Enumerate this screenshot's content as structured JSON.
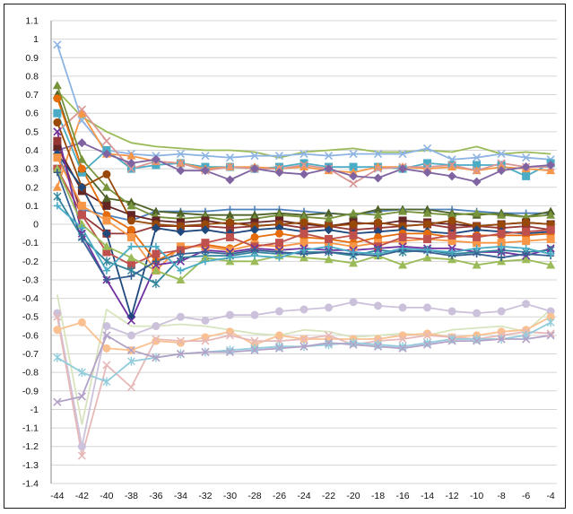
{
  "chart_data": {
    "type": "line",
    "title": "",
    "xlabel": "",
    "ylabel": "",
    "x": [
      -44,
      -42,
      -40,
      -38,
      -36,
      -34,
      -32,
      -30,
      -28,
      -26,
      -24,
      -22,
      -20,
      -18,
      -16,
      -14,
      -12,
      -10,
      -8,
      -6,
      -4
    ],
    "x_tick_labels": [
      "-44",
      "-42",
      "-40",
      "-38",
      "-36",
      "-34",
      "-32",
      "-30",
      "-28",
      "-26",
      "-24",
      "-22",
      "-20",
      "-18",
      "-16",
      "-14",
      "-12",
      "-10",
      "-8",
      "-6",
      "-4"
    ],
    "ylim": [
      -1.4,
      1.1
    ],
    "y_tick_labels": [
      "1.1",
      "1",
      "0.9",
      "0.8",
      "0.7",
      "0.6",
      "0.5",
      "0.4",
      "0.3",
      "0.2",
      "0.1",
      "0",
      "-0.1",
      "-0.2",
      "-0.3",
      "-0.4",
      "-0.5",
      "-0.6",
      "-0.7",
      "-0.8",
      "-0.9",
      "-1",
      "-1.1",
      "-1.2",
      "-1.3",
      "-1.4"
    ],
    "grid": true,
    "legend": "none",
    "series": [
      {
        "color": "#9bbb59",
        "marker": "none",
        "values": [
          0.72,
          0.58,
          0.5,
          0.44,
          0.42,
          0.41,
          0.4,
          0.4,
          0.39,
          0.36,
          0.39,
          0.4,
          0.41,
          0.39,
          0.39,
          0.4,
          0.39,
          0.42,
          0.38,
          0.39,
          0.38
        ]
      },
      {
        "color": "#8eb4e3",
        "marker": "x",
        "values": [
          0.97,
          0.56,
          0.4,
          0.38,
          0.37,
          0.38,
          0.37,
          0.36,
          0.37,
          0.37,
          0.38,
          0.37,
          0.38,
          0.38,
          0.38,
          0.41,
          0.35,
          0.36,
          0.38,
          0.36,
          0.35
        ]
      },
      {
        "color": "#4bacc6",
        "marker": "square",
        "values": [
          0.6,
          0.28,
          0.4,
          0.3,
          0.32,
          0.33,
          0.31,
          0.31,
          0.3,
          0.31,
          0.33,
          0.31,
          0.31,
          0.31,
          0.3,
          0.33,
          0.32,
          0.32,
          0.32,
          0.26,
          0.33
        ]
      },
      {
        "color": "#f79646",
        "marker": "triangle",
        "values": [
          0.2,
          0.6,
          0.38,
          0.37,
          0.34,
          0.33,
          0.3,
          0.31,
          0.31,
          0.3,
          0.31,
          0.29,
          0.28,
          0.31,
          0.31,
          0.3,
          0.31,
          0.29,
          0.31,
          0.3,
          0.29
        ]
      },
      {
        "color": "#d99694",
        "marker": "x",
        "values": [
          0.5,
          0.62,
          0.45,
          0.3,
          0.34,
          0.33,
          0.29,
          0.31,
          0.3,
          0.3,
          0.32,
          0.3,
          0.22,
          0.3,
          0.31,
          0.31,
          0.32,
          0.29,
          0.33,
          0.31,
          0.31
        ]
      },
      {
        "color": "#8064a2",
        "marker": "diamond",
        "values": [
          0.4,
          0.44,
          0.38,
          0.33,
          0.35,
          0.29,
          0.29,
          0.24,
          0.3,
          0.28,
          0.27,
          0.3,
          0.26,
          0.25,
          0.3,
          0.28,
          0.26,
          0.23,
          0.29,
          0.31,
          0.32
        ]
      },
      {
        "color": "#4f81bd",
        "marker": "plus",
        "values": [
          0.38,
          0.08,
          0.05,
          0.02,
          0.07,
          0.07,
          0.07,
          0.08,
          0.08,
          0.08,
          0.07,
          0.06,
          0.05,
          0.07,
          0.08,
          0.08,
          0.08,
          0.07,
          0.06,
          0.06,
          0.06
        ]
      },
      {
        "color": "#4f6228",
        "marker": "triangle",
        "values": [
          0.7,
          0.3,
          0.14,
          0.12,
          0.07,
          0.06,
          0.05,
          0.05,
          0.05,
          0.06,
          0.05,
          0.06,
          0.05,
          0.08,
          0.08,
          0.08,
          0.06,
          0.05,
          0.06,
          0.04,
          0.07
        ]
      },
      {
        "color": "#77933c",
        "marker": "triangle",
        "values": [
          0.75,
          0.35,
          0.2,
          0.1,
          0.04,
          0.03,
          0.04,
          0.02,
          0.03,
          0.05,
          0.04,
          0.03,
          0.06,
          0.05,
          0.07,
          0.06,
          0.05,
          0.06,
          0.05,
          0.04,
          0.05
        ]
      },
      {
        "color": "#632523",
        "marker": "square",
        "values": [
          0.42,
          0.18,
          0.1,
          0.05,
          0.02,
          0.01,
          0.02,
          0.0,
          0.01,
          0.02,
          0.0,
          -0.01,
          0.01,
          0.0,
          0.02,
          0.01,
          0.0,
          -0.01,
          0.0,
          0.01,
          0.0
        ]
      },
      {
        "color": "#953735",
        "marker": "square",
        "values": [
          0.45,
          0.05,
          -0.05,
          -0.05,
          -0.01,
          -0.01,
          -0.01,
          -0.02,
          -0.01,
          0.0,
          -0.02,
          -0.01,
          -0.03,
          -0.02,
          -0.01,
          0.0,
          -0.02,
          -0.01,
          -0.02,
          -0.01,
          -0.03
        ]
      },
      {
        "color": "#984807",
        "marker": "circle",
        "values": [
          0.55,
          0.2,
          0.27,
          0.02,
          0.0,
          -0.01,
          0.0,
          0.01,
          -0.01,
          0.0,
          0.01,
          -0.01,
          0.0,
          0.01,
          -0.01,
          0.0,
          0.02,
          -0.01,
          0.0,
          0.01,
          0.0
        ]
      },
      {
        "color": "#1f497d",
        "marker": "diamond",
        "values": [
          0.38,
          0.2,
          -0.05,
          -0.5,
          -0.02,
          -0.04,
          -0.03,
          -0.05,
          -0.03,
          -0.02,
          -0.04,
          -0.03,
          -0.05,
          -0.04,
          -0.03,
          -0.04,
          -0.05,
          -0.03,
          -0.04,
          -0.05,
          -0.04
        ]
      },
      {
        "color": "#e46c0a",
        "marker": "circle",
        "values": [
          0.68,
          0.3,
          0.05,
          -0.03,
          -0.2,
          -0.13,
          -0.11,
          -0.13,
          -0.07,
          -0.05,
          -0.07,
          -0.08,
          -0.1,
          -0.07,
          -0.05,
          -0.05,
          -0.07,
          -0.06,
          -0.06,
          -0.06,
          -0.05
        ]
      },
      {
        "color": "#f79646",
        "marker": "square",
        "values": [
          0.36,
          0.1,
          0.02,
          -0.07,
          -0.25,
          -0.12,
          -0.12,
          -0.14,
          -0.11,
          -0.12,
          -0.1,
          -0.1,
          -0.12,
          -0.1,
          -0.09,
          -0.08,
          -0.09,
          -0.1,
          -0.1,
          -0.09,
          -0.08
        ]
      },
      {
        "color": "#c0504d",
        "marker": "square",
        "values": [
          0.3,
          0.05,
          -0.15,
          -0.22,
          -0.16,
          -0.14,
          -0.1,
          -0.07,
          -0.12,
          -0.1,
          -0.05,
          -0.08,
          -0.06,
          -0.12,
          -0.07,
          -0.08,
          -0.06,
          -0.07,
          -0.05,
          -0.04,
          -0.03
        ]
      },
      {
        "color": "#7030a0",
        "marker": "x",
        "values": [
          0.5,
          -0.05,
          -0.3,
          -0.52,
          -0.22,
          -0.2,
          -0.14,
          -0.15,
          -0.13,
          -0.14,
          -0.13,
          -0.14,
          -0.14,
          -0.13,
          -0.12,
          -0.13,
          -0.13,
          -0.15,
          -0.15,
          -0.17,
          -0.13
        ]
      },
      {
        "color": "#31859c",
        "marker": "star",
        "values": [
          0.15,
          -0.07,
          -0.2,
          -0.25,
          -0.32,
          -0.18,
          -0.17,
          -0.17,
          -0.15,
          -0.16,
          -0.15,
          -0.15,
          -0.17,
          -0.14,
          -0.15,
          -0.14,
          -0.16,
          -0.15,
          -0.14,
          -0.15,
          -0.14
        ]
      },
      {
        "color": "#9bbb59",
        "marker": "triangle",
        "values": [
          0.3,
          0.0,
          -0.12,
          -0.18,
          -0.25,
          -0.3,
          -0.18,
          -0.2,
          -0.2,
          -0.17,
          -0.18,
          -0.19,
          -0.21,
          -0.17,
          -0.22,
          -0.18,
          -0.19,
          -0.22,
          -0.2,
          -0.19,
          -0.22
        ]
      },
      {
        "color": "#376092",
        "marker": "plus",
        "values": [
          0.28,
          -0.08,
          -0.3,
          -0.28,
          -0.2,
          -0.16,
          -0.15,
          -0.16,
          -0.14,
          -0.15,
          -0.16,
          -0.15,
          -0.16,
          -0.17,
          -0.14,
          -0.15,
          -0.17,
          -0.16,
          -0.18,
          -0.16,
          -0.17
        ]
      },
      {
        "color": "#4bacc6",
        "marker": "plus",
        "values": [
          0.1,
          -0.02,
          -0.25,
          -0.12,
          -0.12,
          -0.25,
          -0.2,
          -0.18,
          -0.17,
          -0.18,
          -0.14,
          -0.12,
          -0.15,
          -0.16,
          -0.13,
          -0.14,
          -0.15,
          -0.13,
          -0.12,
          -0.13,
          -0.16
        ]
      },
      {
        "color": "#ccc1da",
        "marker": "circle",
        "values": [
          -0.48,
          -1.2,
          -0.55,
          -0.6,
          -0.55,
          -0.5,
          -0.52,
          -0.49,
          -0.49,
          -0.47,
          -0.46,
          -0.45,
          -0.42,
          -0.44,
          -0.45,
          -0.45,
          -0.47,
          -0.48,
          -0.47,
          -0.43,
          -0.47
        ]
      },
      {
        "color": "#d7e4bd",
        "marker": "none",
        "values": [
          -0.38,
          -1.08,
          -0.46,
          -0.55,
          -0.55,
          -0.54,
          -0.55,
          -0.57,
          -0.59,
          -0.6,
          -0.57,
          -0.58,
          -0.61,
          -0.6,
          -0.59,
          -0.6,
          -0.57,
          -0.56,
          -0.55,
          -0.58,
          -0.46
        ]
      },
      {
        "color": "#fac090",
        "marker": "circle",
        "values": [
          -0.57,
          -0.53,
          -0.67,
          -0.68,
          -0.63,
          -0.64,
          -0.61,
          -0.58,
          -0.65,
          -0.6,
          -0.62,
          -0.62,
          -0.62,
          -0.62,
          -0.6,
          -0.59,
          -0.61,
          -0.6,
          -0.58,
          -0.57,
          -0.5
        ]
      },
      {
        "color": "#e6b9b8",
        "marker": "x",
        "values": [
          -0.5,
          -1.25,
          -0.76,
          -0.88,
          -0.62,
          -0.63,
          -0.63,
          -0.6,
          -0.63,
          -0.63,
          -0.62,
          -0.6,
          -0.65,
          -0.63,
          -0.62,
          -0.6,
          -0.61,
          -0.62,
          -0.6,
          -0.58,
          -0.59
        ]
      },
      {
        "color": "#93cddd",
        "marker": "star",
        "values": [
          -0.72,
          -0.8,
          -0.85,
          -0.74,
          -0.72,
          -0.7,
          -0.69,
          -0.68,
          -0.67,
          -0.66,
          -0.66,
          -0.65,
          -0.64,
          -0.65,
          -0.66,
          -0.64,
          -0.62,
          -0.62,
          -0.62,
          -0.6,
          -0.53
        ]
      },
      {
        "color": "#b3a2c7",
        "marker": "x",
        "values": [
          -0.96,
          -0.93,
          -0.6,
          -0.68,
          -0.72,
          -0.7,
          -0.69,
          -0.69,
          -0.68,
          -0.67,
          -0.66,
          -0.64,
          -0.65,
          -0.66,
          -0.67,
          -0.65,
          -0.63,
          -0.63,
          -0.62,
          -0.62,
          -0.6
        ]
      }
    ]
  }
}
